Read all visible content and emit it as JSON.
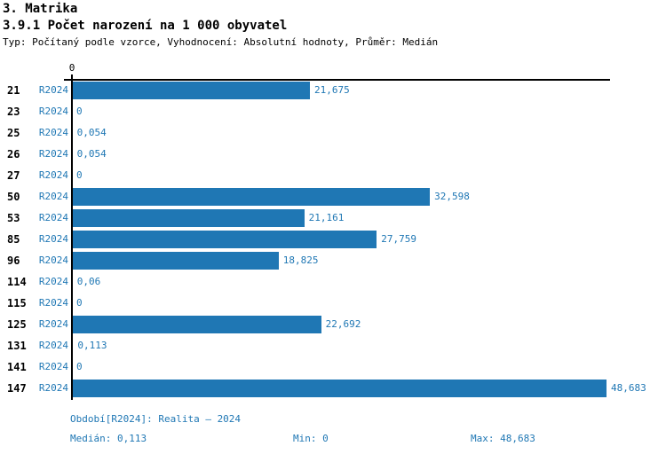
{
  "header": {
    "title": "3. Matrika",
    "subtitle": "3.9.1 Počet narození na 1 000 obyvatel",
    "meta": "Typ: Počítaný podle vzorce, Vyhodnocení: Absolutní hodnoty, Průměr: Medián"
  },
  "colors": {
    "accent": "#1f77b4",
    "bar": "#1f77b4",
    "axis": "#000000",
    "text": "#000000"
  },
  "chart_data": {
    "type": "bar",
    "orientation": "horizontal",
    "title": "3.9.1 Počet narození na 1 000 obyvatel",
    "series_label": "R2024",
    "categories": [
      "21",
      "23",
      "25",
      "26",
      "27",
      "50",
      "53",
      "85",
      "96",
      "114",
      "115",
      "125",
      "131",
      "141",
      "147"
    ],
    "values": [
      21.675,
      0,
      0.054,
      0.054,
      0,
      32.598,
      21.161,
      27.759,
      18.825,
      0.06,
      0,
      22.692,
      0.113,
      0,
      48.683
    ],
    "value_labels": [
      "21,675",
      "0",
      "0,054",
      "0,054",
      "0",
      "32,598",
      "21,161",
      "27,759",
      "18,825",
      "0,06",
      "0",
      "22,692",
      "0,113",
      "0",
      "48,683"
    ],
    "xlim": [
      0,
      48.683
    ],
    "axis_zero_tick_label": "0",
    "grid": false,
    "legend": "none",
    "value_label_position": "end-of-bar"
  },
  "footer": {
    "period": "Období[R2024]: Realita – 2024",
    "median": "Medián: 0,113",
    "min": "Min: 0",
    "max": "Max: 48,683"
  }
}
